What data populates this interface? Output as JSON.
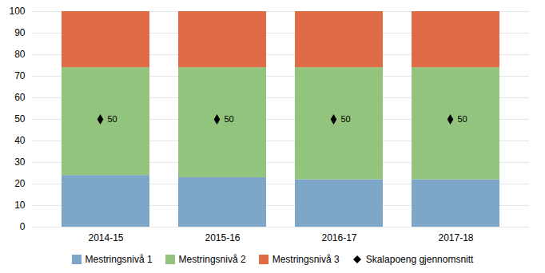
{
  "chart_data": {
    "type": "bar",
    "stacked": true,
    "categories": [
      "2014-15",
      "2015-16",
      "2016-17",
      "2017-18"
    ],
    "series": [
      {
        "name": "Mestringsnivå 1",
        "color": "#7ea6c8",
        "values": [
          24,
          23,
          22,
          22
        ]
      },
      {
        "name": "Mestringsnivå 2",
        "color": "#93c47d",
        "values": [
          50,
          51,
          52,
          52
        ]
      },
      {
        "name": "Mestringsnivå 3",
        "color": "#e06c45",
        "values": [
          26,
          26,
          26,
          26
        ]
      },
      {
        "name": "Skalapoeng gjennomsnitt",
        "type": "scatter",
        "marker": "diamond",
        "color": "black",
        "data_labels": true,
        "values": [
          50,
          50,
          50,
          50
        ]
      }
    ],
    "ylim": [
      0,
      100
    ],
    "yticks": [
      0,
      10,
      20,
      30,
      40,
      50,
      60,
      70,
      80,
      90,
      100
    ],
    "grid": true,
    "legend": "bottom"
  }
}
